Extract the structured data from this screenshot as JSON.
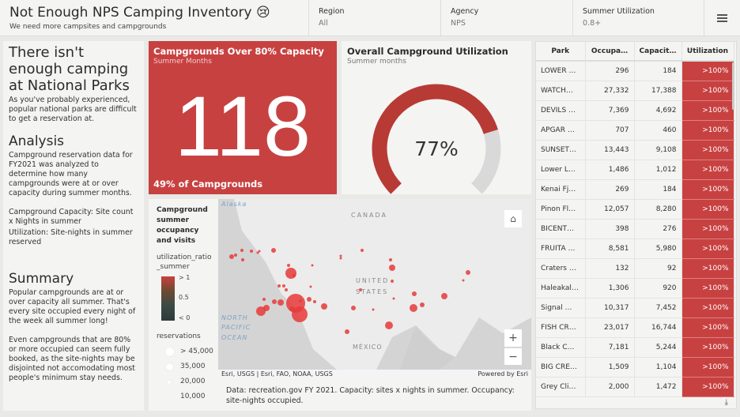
{
  "header": {
    "title": "Not Enough NPS Camping Inventory 😢",
    "subtitle": "We need more campsites and campgrounds",
    "filters": [
      {
        "label": "Region",
        "value": "All"
      },
      {
        "label": "Agency",
        "value": "NPS"
      },
      {
        "label": "Summer Utilization",
        "value": "0.8+"
      }
    ],
    "menu_icon": "hamburger-menu-icon"
  },
  "intro": {
    "heading": "There isn't enough camping at National Parks",
    "body": "As you've probably experienced, popular national parks are difficult to get a reservation at.",
    "analysis_heading": "Analysis",
    "analysis_body": "Campground reservation data for FY2021 was analyzed to determine how many campgrounds were at or over capacity during summer months.",
    "capacity_def": "Campground Capacity: Site count x Nights in summer",
    "utilization_def": "Utilization: Site-nights in summer reserved",
    "summary_heading": "Summary",
    "summary_body1": "Popular campgrounds are at or over capacity all summer. That's every site occupied every night of the week all summer long!",
    "summary_body2": "Even campgrounds that are 80% or more occupied can seem fully booked, as the site-nights may be disjointed not accomodating most people's minimum stay needs."
  },
  "indicator": {
    "title": "Campgrounds Over 80% Capacity",
    "subtitle": "Summer Months",
    "value": "118",
    "bottom": "49% of Campgrounds",
    "color": "#c84141"
  },
  "gauge": {
    "title": "Overall Campground Utilization",
    "subtitle": "Summer months",
    "value_label": "77%",
    "value": 0.77,
    "fill_color": "#b83a35",
    "track_color": "#d9d9d9"
  },
  "map": {
    "legend_title": "Campground summer occupancy and visits",
    "field": "utilization_ratio_summer",
    "ramp_labels": [
      "> 1",
      "0.5",
      "< 0"
    ],
    "size_title": "reservations",
    "size_labels": [
      "> 45,000",
      "35,000",
      "20,000",
      "10,000"
    ],
    "labels": {
      "alaska": "Alaska",
      "canada": "CANADA",
      "united": "UNITED",
      "states": "STATES",
      "np": "NORTH",
      "pac": "PACIFIC",
      "ocean": "OCEAN",
      "mexico": "MÉXICO"
    },
    "attribution": "Esri, USGS | Esri, FAO, NOAA, USGS",
    "powered": "Powered by Esri",
    "zoom_in": "+",
    "zoom_out": "−",
    "caption": "Data: recreation.gov FY 2021. Capacity: sites  x nights in summer. Occupancy: site-nights occupied."
  },
  "table": {
    "columns": [
      "Park",
      "Occupa…",
      "Capacit…",
      "Utilization"
    ],
    "rows": [
      [
        "LOWER …",
        "296",
        "184",
        ">100%"
      ],
      [
        "WATCH…",
        "27,332",
        "17,388",
        ">100%"
      ],
      [
        "DEVILS …",
        "7,369",
        "4,692",
        ">100%"
      ],
      [
        "APGAR …",
        "707",
        "460",
        ">100%"
      ],
      [
        "SUNSET…",
        "13,443",
        "9,108",
        ">100%"
      ],
      [
        "Lower L…",
        "1,486",
        "1,012",
        ">100%"
      ],
      [
        "Kenai Fj…",
        "269",
        "184",
        ">100%"
      ],
      [
        "Pinon Fl…",
        "12,057",
        "8,280",
        ">100%"
      ],
      [
        "BICENT…",
        "398",
        "276",
        ">100%"
      ],
      [
        "FRUITA …",
        "8,581",
        "5,980",
        ">100%"
      ],
      [
        "Craters …",
        "132",
        "92",
        ">100%"
      ],
      [
        "Haleakal…",
        "1,306",
        "920",
        ">100%"
      ],
      [
        "Signal …",
        "10,317",
        "7,452",
        ">100%"
      ],
      [
        "FISH CR…",
        "23,017",
        "16,744",
        ">100%"
      ],
      [
        "Black C…",
        "7,181",
        "5,244",
        ">100%"
      ],
      [
        "BIG CRE…",
        "1,509",
        "1,104",
        ">100%"
      ],
      [
        "Grey Cli…",
        "2,000",
        "1,472",
        ">100%"
      ]
    ],
    "download_icon": "download-icon"
  }
}
